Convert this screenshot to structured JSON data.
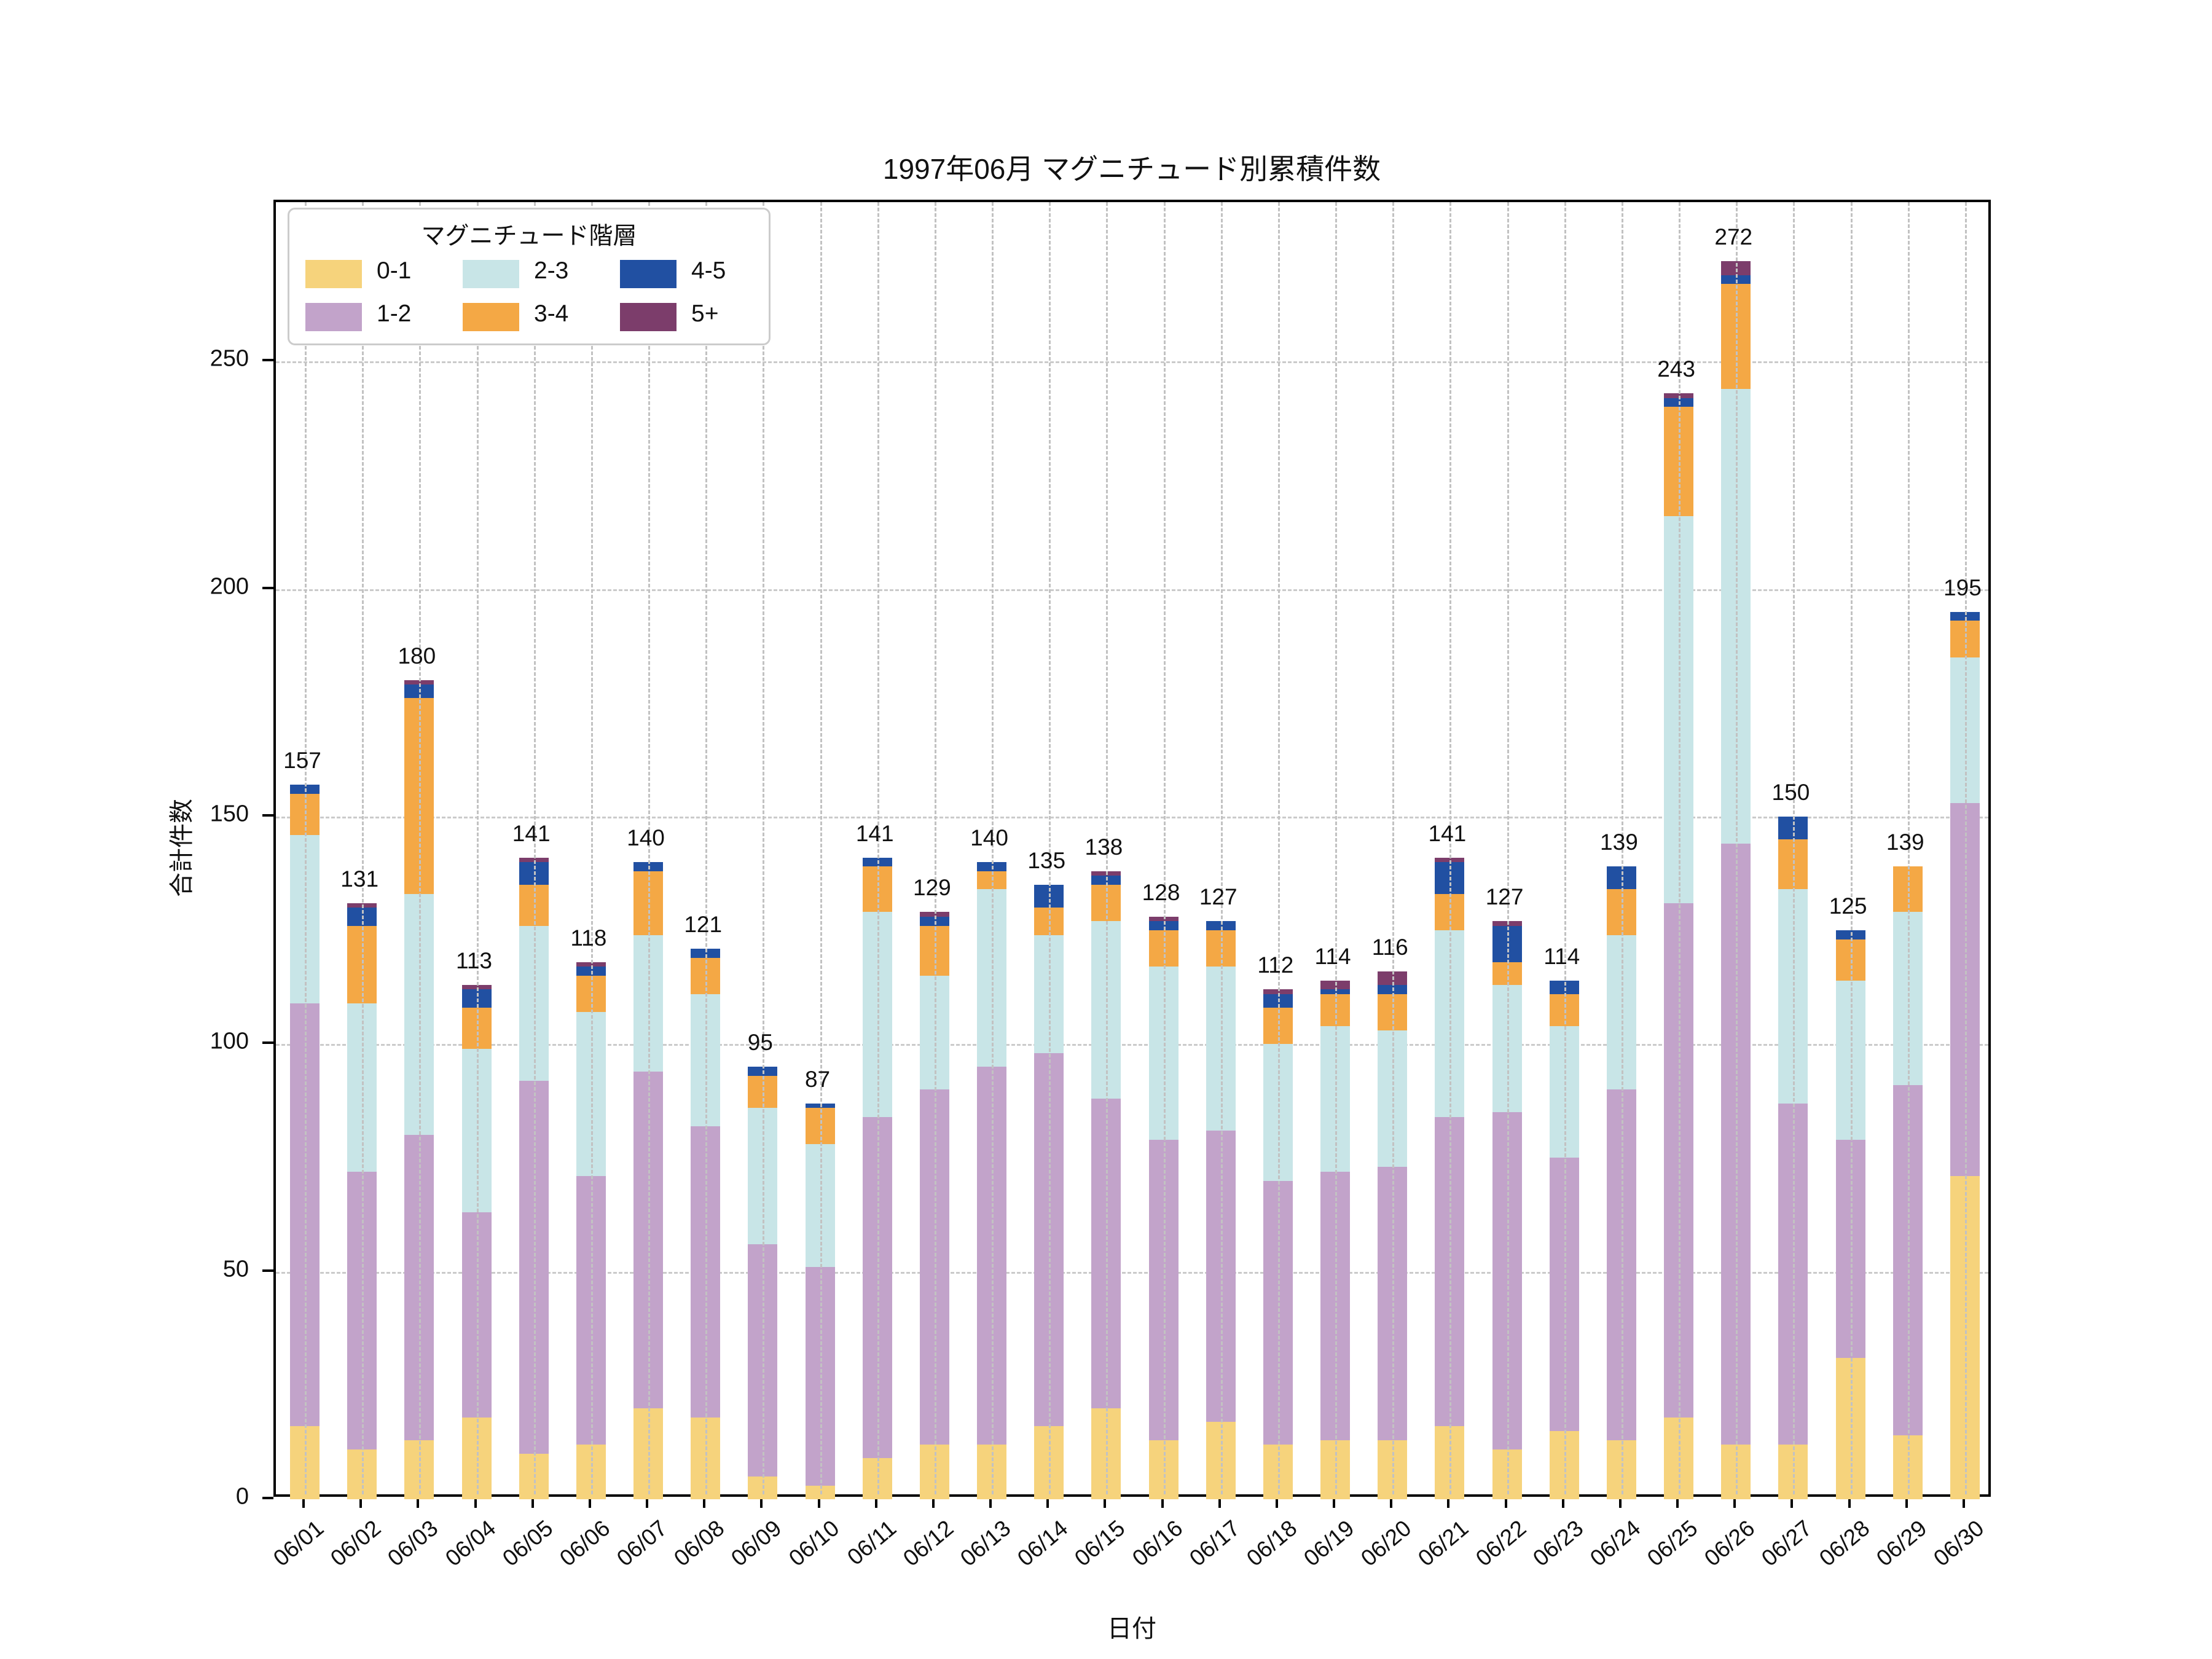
{
  "title": "1997年06月 マグニチュード別累積件数",
  "axes": {
    "x_label": "日付",
    "y_label": "合計件数",
    "y_ticks": [
      0,
      50,
      100,
      150,
      200,
      250
    ]
  },
  "legend": {
    "title": "マグニチュード階層",
    "entries": [
      {
        "label": "0-1",
        "color": "#f6d37c"
      },
      {
        "label": "1-2",
        "color": "#c2a3ca"
      },
      {
        "label": "2-3",
        "color": "#c8e5e7"
      },
      {
        "label": "3-4",
        "color": "#f4a845"
      },
      {
        "label": "4-5",
        "color": "#2150a2"
      },
      {
        "label": "5+",
        "color": "#7c3d6b"
      }
    ]
  },
  "chart_data": {
    "type": "bar",
    "stacked": true,
    "title": "1997年06月 マグニチュード別累積件数",
    "xlabel": "日付",
    "ylabel": "合計件数",
    "ylim": [
      0,
      285
    ],
    "y_ticks": [
      0,
      50,
      100,
      150,
      200,
      250
    ],
    "grid": true,
    "grid_style": "dashed",
    "legend_position": "upper left",
    "categories": [
      "06/01",
      "06/02",
      "06/03",
      "06/04",
      "06/05",
      "06/06",
      "06/07",
      "06/08",
      "06/09",
      "06/10",
      "06/11",
      "06/12",
      "06/13",
      "06/14",
      "06/15",
      "06/16",
      "06/17",
      "06/18",
      "06/19",
      "06/20",
      "06/21",
      "06/22",
      "06/23",
      "06/24",
      "06/25",
      "06/26",
      "06/27",
      "06/28",
      "06/29",
      "06/30"
    ],
    "totals": [
      157,
      131,
      180,
      113,
      141,
      118,
      140,
      121,
      95,
      87,
      141,
      129,
      140,
      135,
      138,
      128,
      127,
      112,
      114,
      116,
      141,
      127,
      114,
      139,
      243,
      272,
      150,
      125,
      139,
      195
    ],
    "series": [
      {
        "name": "0-1",
        "color": "#f6d37c",
        "values": [
          16,
          11,
          13,
          18,
          10,
          12,
          20,
          18,
          5,
          3,
          9,
          12,
          12,
          16,
          20,
          13,
          17,
          12,
          13,
          13,
          16,
          11,
          15,
          13,
          18,
          12,
          12,
          31,
          14,
          71
        ]
      },
      {
        "name": "1-2",
        "color": "#c2a3ca",
        "values": [
          93,
          61,
          67,
          45,
          82,
          59,
          74,
          64,
          51,
          48,
          75,
          78,
          83,
          82,
          68,
          66,
          64,
          58,
          59,
          60,
          68,
          74,
          60,
          77,
          113,
          132,
          75,
          48,
          77,
          82
        ]
      },
      {
        "name": "2-3",
        "color": "#c8e5e7",
        "values": [
          37,
          37,
          53,
          36,
          34,
          36,
          30,
          29,
          30,
          27,
          45,
          25,
          39,
          26,
          39,
          38,
          36,
          30,
          32,
          30,
          41,
          28,
          29,
          34,
          85,
          100,
          47,
          35,
          38,
          32
        ]
      },
      {
        "name": "3-4",
        "color": "#f4a845",
        "values": [
          9,
          17,
          43,
          9,
          9,
          8,
          14,
          8,
          7,
          8,
          10,
          11,
          4,
          6,
          8,
          8,
          8,
          8,
          7,
          8,
          8,
          5,
          7,
          10,
          24,
          23,
          11,
          9,
          10,
          8
        ]
      },
      {
        "name": "4-5",
        "color": "#2150a2",
        "values": [
          2,
          4,
          3,
          4,
          5,
          2,
          2,
          2,
          2,
          1,
          2,
          2,
          2,
          5,
          2,
          2,
          2,
          3,
          1,
          2,
          7,
          8,
          3,
          5,
          2,
          2,
          5,
          2,
          0,
          2
        ]
      },
      {
        "name": "5+",
        "color": "#7c3d6b",
        "values": [
          0,
          1,
          1,
          1,
          1,
          1,
          0,
          0,
          0,
          0,
          0,
          1,
          0,
          0,
          1,
          1,
          0,
          1,
          2,
          3,
          1,
          1,
          0,
          0,
          1,
          3,
          0,
          0,
          0,
          0
        ]
      }
    ]
  }
}
